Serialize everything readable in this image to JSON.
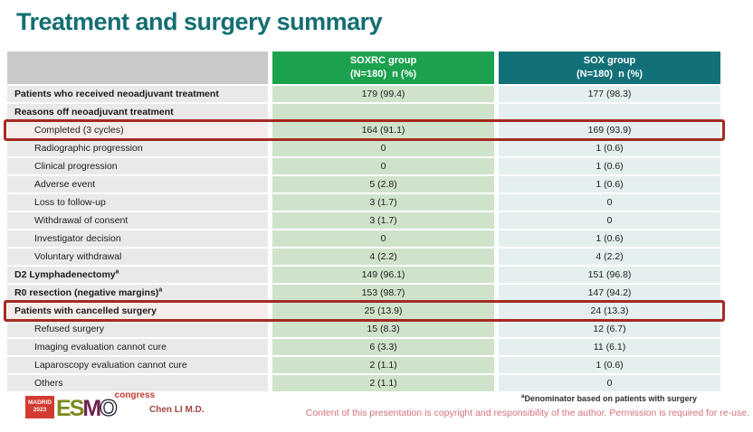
{
  "title": "Treatment and surgery summary",
  "colors": {
    "title": "#146e72",
    "soxrc": "#1ca24f",
    "sox": "#137079",
    "hl": "#a32b22",
    "author": "#a0453f",
    "copy": "#d4707c"
  },
  "table": {
    "columns": [
      {
        "name": "SOXRC group",
        "sub": "(N=180)  n (%)"
      },
      {
        "name": "SOX group",
        "sub": "(N=180)  n (%)"
      }
    ],
    "rows": [
      {
        "label": "Patients who received neoadjuvant treatment",
        "sup": "",
        "style": "section",
        "soxrc": "179 (99.4)",
        "sox": "177 (98.3)",
        "highlight": false
      },
      {
        "label": "Reasons off neoadjuvant treatment",
        "sup": "",
        "style": "section",
        "soxrc": "",
        "sox": "",
        "highlight": false
      },
      {
        "label": "Completed (3 cycles)",
        "sup": "",
        "style": "sub",
        "soxrc": "164 (91.1)",
        "sox": "169 (93.9)",
        "highlight": true
      },
      {
        "label": "Radiographic progression",
        "sup": "",
        "style": "sub",
        "soxrc": "0",
        "sox": "1 (0.6)",
        "highlight": false
      },
      {
        "label": "Clinical progression",
        "sup": "",
        "style": "sub",
        "soxrc": "0",
        "sox": "1 (0.6)",
        "highlight": false
      },
      {
        "label": "Adverse event",
        "sup": "",
        "style": "sub",
        "soxrc": "5 (2.8)",
        "sox": "1 (0.6)",
        "highlight": false
      },
      {
        "label": "Loss to follow-up",
        "sup": "",
        "style": "sub",
        "soxrc": "3 (1.7)",
        "sox": "0",
        "highlight": false
      },
      {
        "label": "Withdrawal of consent",
        "sup": "",
        "style": "sub",
        "soxrc": "3 (1.7)",
        "sox": "0",
        "highlight": false
      },
      {
        "label": "Investigator decision",
        "sup": "",
        "style": "sub",
        "soxrc": "0",
        "sox": "1 (0.6)",
        "highlight": false
      },
      {
        "label": "Voluntary withdrawal",
        "sup": "",
        "style": "sub",
        "soxrc": "4 (2.2)",
        "sox": "4 (2.2)",
        "highlight": false
      },
      {
        "label": "D2 Lymphadenectomy",
        "sup": "a",
        "style": "section",
        "soxrc": "149 (96.1)",
        "sox": "151 (96.8)",
        "highlight": false
      },
      {
        "label": "R0 resection (negative margins)",
        "sup": "a",
        "style": "section",
        "soxrc": "153 (98.7)",
        "sox": "147 (94.2)",
        "highlight": false
      },
      {
        "label": "Patients with cancelled surgery",
        "sup": "",
        "style": "section",
        "soxrc": "25 (13.9)",
        "sox": "24 (13.3)",
        "highlight": true
      },
      {
        "label": "Refused surgery",
        "sup": "",
        "style": "sub",
        "soxrc": "15 (8.3)",
        "sox": "12 (6.7)",
        "highlight": false
      },
      {
        "label": "Imaging evaluation cannot cure",
        "sup": "",
        "style": "sub",
        "soxrc": "6 (3.3)",
        "sox": "11 (6.1)",
        "highlight": false
      },
      {
        "label": "Laparoscopy evaluation cannot cure",
        "sup": "",
        "style": "sub",
        "soxrc": "2 (1.1)",
        "sox": "1 (0.6)",
        "highlight": false
      },
      {
        "label": "Others",
        "sup": "",
        "style": "sub",
        "soxrc": "2 (1.1)",
        "sox": "0",
        "highlight": false
      }
    ]
  },
  "footer": {
    "logo": {
      "city": "MADRID",
      "year": "2023",
      "esmo_letters": [
        "E",
        "S",
        "M",
        "O"
      ],
      "congress": "congress"
    },
    "author": "Chen LI M.D.",
    "footnote_sup": "a",
    "footnote": "Denominator based on patients with surgery",
    "copyright": "Content of this presentation is copyright and responsibility of the author. Permission is required for re-use."
  }
}
